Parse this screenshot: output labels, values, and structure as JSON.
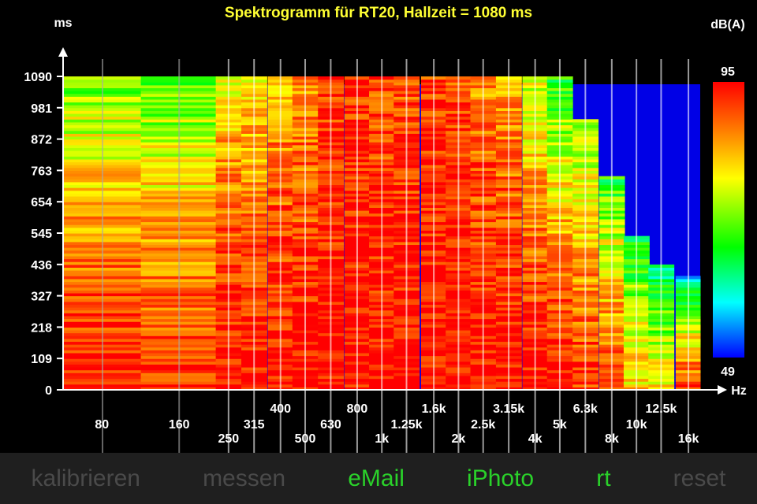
{
  "chart_data": {
    "type": "heatmap",
    "title": "Spektrogramm für RT20, Hallzeit = 1080 ms",
    "ylabel": "ms",
    "xlabel": "Hz",
    "y_ticks": [
      "0",
      "109",
      "218",
      "327",
      "436",
      "545",
      "654",
      "763",
      "872",
      "981",
      "1090"
    ],
    "ylim": [
      0,
      1090
    ],
    "x_bands": [
      "80",
      "160",
      "250",
      "315",
      "400",
      "500",
      "630",
      "800",
      "1k",
      "1.25k",
      "1.6k",
      "2k",
      "2.5k",
      "3.15k",
      "4k",
      "5k",
      "6.3k",
      "8k",
      "10k",
      "12.5k",
      "16k"
    ],
    "colorbar": {
      "label": "dB(A)",
      "max": "95",
      "min": "49",
      "vmin": 49,
      "vmax": 95
    },
    "band_decay_ms": [
      1090,
      1090,
      1090,
      1090,
      1090,
      1090,
      1090,
      1090,
      1090,
      1090,
      1090,
      1090,
      1090,
      1090,
      1090,
      1090,
      940,
      740,
      540,
      440,
      400
    ],
    "band_level_top_db": [
      72,
      70,
      80,
      80,
      83,
      85,
      91,
      92,
      90,
      90,
      92,
      90,
      86,
      84,
      76,
      68,
      72,
      68,
      65,
      60,
      58
    ],
    "band_level_bottom_db": [
      94,
      93,
      95,
      95,
      95,
      95,
      95,
      95,
      95,
      95,
      95,
      95,
      95,
      95,
      95,
      95,
      92,
      90,
      82,
      80,
      90
    ]
  },
  "toolbar": {
    "items": [
      {
        "label": "kalibrieren",
        "enabled": false
      },
      {
        "label": "messen",
        "enabled": false
      },
      {
        "label": "eMail",
        "enabled": true
      },
      {
        "label": "iPhoto",
        "enabled": true
      },
      {
        "label": "rt",
        "enabled": true
      },
      {
        "label": "reset",
        "enabled": false
      }
    ]
  }
}
